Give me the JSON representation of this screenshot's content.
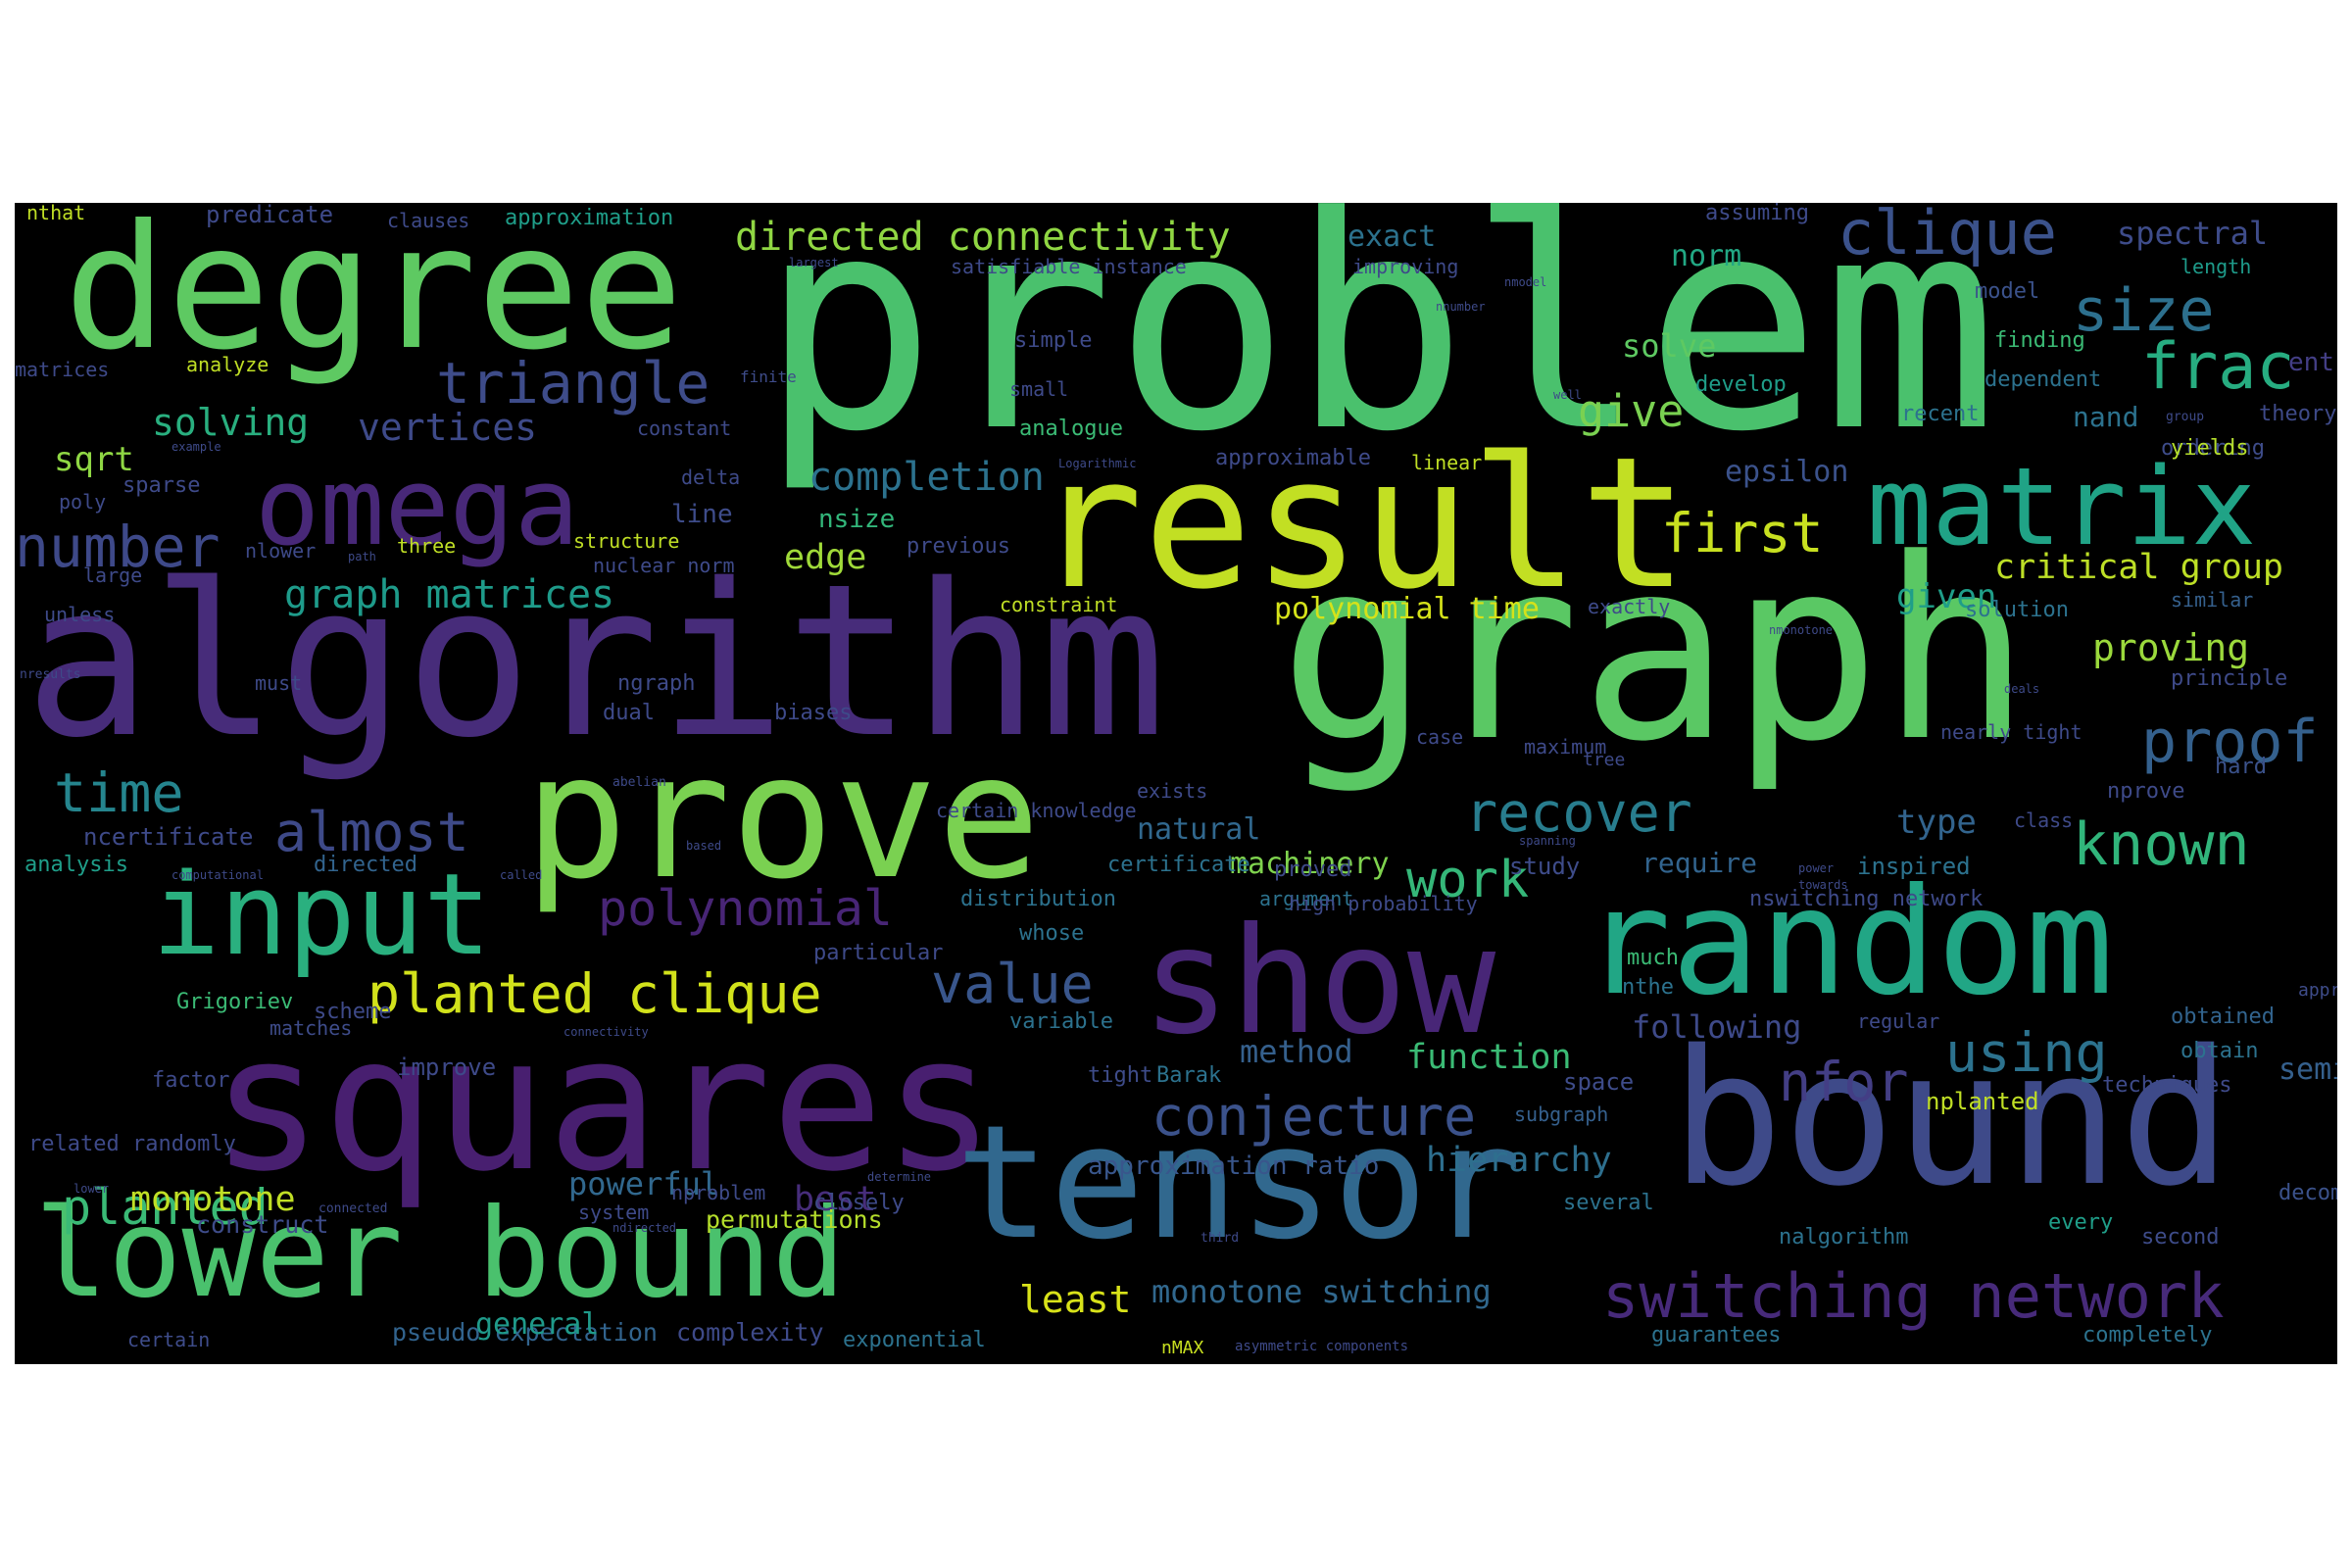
{
  "palette": {
    "background": "#000000",
    "page": "#ffffff"
  },
  "words": [
    "problem",
    "graph",
    "algorithm",
    "result",
    "degree",
    "prove",
    "squares",
    "bound",
    "random",
    "tensor",
    "show",
    "lower bound",
    "omega",
    "input",
    "matrix",
    "clique",
    "triangle",
    "directed connectivity",
    "first",
    "size",
    "frac",
    "number",
    "planted clique",
    "switching network",
    "conjecture",
    "nfor",
    "using",
    "recover",
    "known",
    "proof",
    "almost",
    "time",
    "polynomial",
    "value",
    "work",
    "planted",
    "critical group",
    "graph matrices",
    "solving",
    "vertices",
    "sqrt",
    "completion",
    "edge",
    "give",
    "solve",
    "spectral",
    "monotone",
    "monotone switching",
    "least",
    "hierarchy",
    "function",
    "following",
    "approximation ratio",
    "semidefinite program",
    "proving",
    "given",
    "type",
    "norm",
    "exact",
    "epsilon",
    "polynomial time",
    "method",
    "natural",
    "pseudo expectation",
    "complexity",
    "powerful",
    "best",
    "permutations",
    "construct",
    "general",
    "machinery",
    "nsize",
    "nand",
    "ordering",
    "theory",
    "length",
    "entries",
    "model",
    "finding",
    "dependent",
    "recent",
    "develop",
    "yields",
    "solution",
    "similar",
    "principle",
    "require",
    "study",
    "inspired",
    "class",
    "nprove",
    "hard",
    "approximate",
    "decomposition",
    "obtained",
    "obtain",
    "regular",
    "nplanted",
    "techniques",
    "nalgorithm",
    "every",
    "second",
    "several",
    "guarantees",
    "completely",
    "space",
    "subgraph",
    "much",
    "nthe",
    "tight",
    "Barak",
    "closely",
    "exponential",
    "nMAX",
    "asymmetric components",
    "certain",
    "system",
    "analysis",
    "ncertificate",
    "directed",
    "matches",
    "improve",
    "factor",
    "related randomly",
    "Grigoriev",
    "scheme",
    "variable",
    "particular",
    "whose",
    "distribution",
    "certificate",
    "proved",
    "argument",
    "nthat",
    "predicate",
    "clauses",
    "approximation",
    "assuming",
    "satisfiable instance",
    "improving",
    "matrices",
    "analyze",
    "finite",
    "simple",
    "small",
    "analogue",
    "constant",
    "approximable",
    "linear",
    "Logarithmic",
    "poly",
    "sparse",
    "delta",
    "line",
    "large",
    "nlower",
    "three",
    "structure",
    "previous",
    "nuclear norm",
    "unless",
    "must",
    "ngraph",
    "dual",
    "biases",
    "constraint",
    "exactly",
    "maximum",
    "case",
    "exists",
    "certain knowledge",
    "high probability",
    "nswitching network",
    "nearly tight",
    "tree",
    "nresults",
    "abelian",
    "nmodel",
    "nnumber",
    "well",
    "group",
    "largest",
    "example",
    "path",
    "called",
    "spanning",
    "based",
    "computational",
    "towards",
    "power",
    "lower",
    "connected",
    "ndirected",
    "determine",
    "third",
    "connectivity",
    "deals",
    "nmonotone",
    "nproblem"
  ]
}
